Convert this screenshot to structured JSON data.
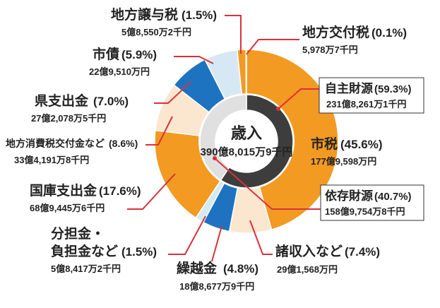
{
  "chart_data": {
    "type": "pie",
    "center": {
      "title": "歳入",
      "amount": "390億8,015万9千円"
    },
    "slices": [
      {
        "name": "市税",
        "percent": 45.6,
        "pct_label": "(45.6%)",
        "amount": "177億9,598万円",
        "color": "#f39a22"
      },
      {
        "name": "諸収入など",
        "percent": 7.4,
        "pct_label": "(7.4%)",
        "amount": "29億1,568万円",
        "color": "#fbe6cf"
      },
      {
        "name": "繰越金",
        "percent": 4.8,
        "pct_label": "(4.8%)",
        "amount": "18億8,677万9千円",
        "color": "#1d73c0"
      },
      {
        "name": "分担金・負担金など",
        "percent": 1.5,
        "pct_label": "(1.5%)",
        "amount": "5億8,417万2千円",
        "color": "#d7e8f5"
      },
      {
        "name": "国庫支出金",
        "percent": 17.6,
        "pct_label": "(17.6%)",
        "amount": "68億9,445万6千円",
        "color": "#f39a22"
      },
      {
        "name": "地方消費税交付金など",
        "percent": 8.6,
        "pct_label": "(8.6%)",
        "amount": "33億4,191万8千円",
        "color": "#fbe6cf"
      },
      {
        "name": "県支出金",
        "percent": 7.0,
        "pct_label": "(7.0%)",
        "amount": "27億2,078万5千円",
        "color": "#1d73c0"
      },
      {
        "name": "市債",
        "percent": 5.9,
        "pct_label": "(5.9%)",
        "amount": "22億9,510万円",
        "color": "#d7e8f5"
      },
      {
        "name": "地方譲与税",
        "percent": 1.5,
        "pct_label": "(1.5%)",
        "amount": "5億8,550万2千円",
        "color": "#f39a22"
      },
      {
        "name": "地方交付税",
        "percent": 0.1,
        "pct_label": "(0.1%)",
        "amount": "5,978万7千円",
        "color": "#fbe6cf"
      }
    ],
    "groups": [
      {
        "name": "自主財源",
        "percent": 59.3,
        "pct_label": "(59.3%)",
        "amount": "231億8,261万1千円",
        "color": "#3d3d3d"
      },
      {
        "name": "依存財源",
        "percent": 40.7,
        "pct_label": "(40.7%)",
        "amount": "158億9,754万8千円",
        "color": "#e0e0e0"
      }
    ],
    "label_lines": {
      "bunntan_line1": "分担金・",
      "bunntan_line2": "負担金など"
    }
  },
  "colors": {
    "leader": "#d9323a",
    "text": "#222222"
  }
}
